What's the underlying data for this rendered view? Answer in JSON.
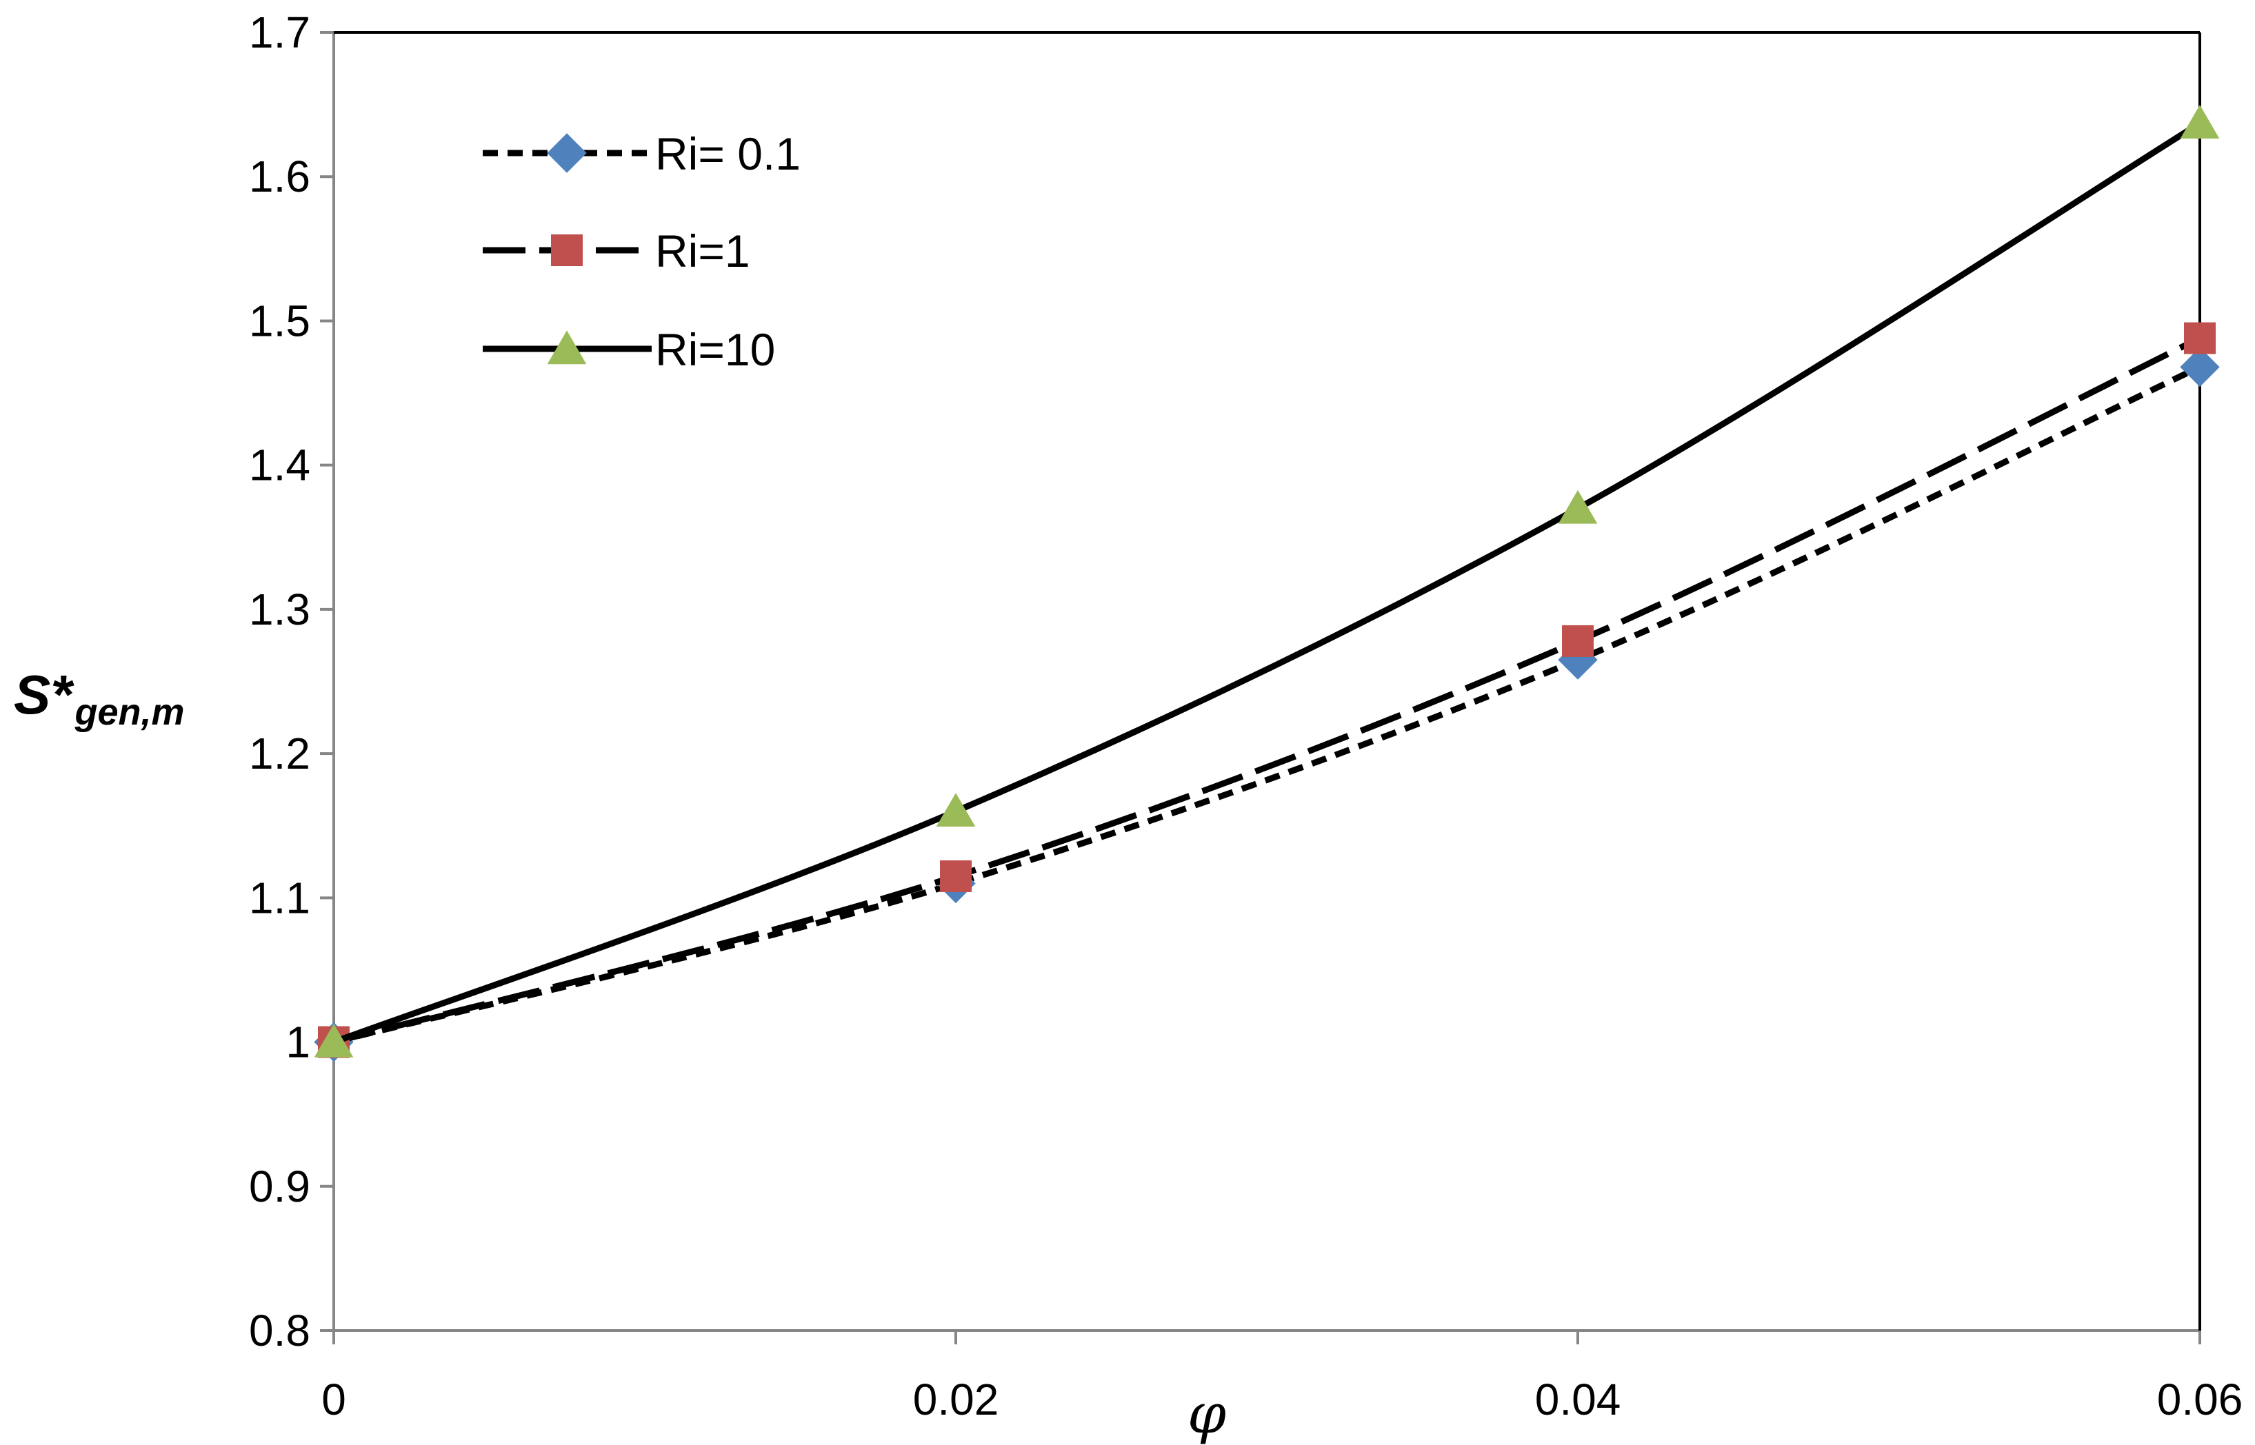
{
  "chart_data": {
    "type": "line",
    "title": "",
    "xlabel": "φ",
    "ylabel": {
      "main": "S*",
      "sub": "gen,m"
    },
    "x": [
      0,
      0.02,
      0.04,
      0.06
    ],
    "xlim": [
      0,
      0.06
    ],
    "ylim": [
      0.8,
      1.7
    ],
    "x_ticks": [
      "0",
      "0.02",
      "0.04",
      "0.06"
    ],
    "y_ticks": [
      "0.8",
      "0.9",
      "1",
      "1.1",
      "1.2",
      "1.3",
      "1.4",
      "1.5",
      "1.6",
      "1.7"
    ],
    "grid": false,
    "legend_position": "top-left",
    "series": [
      {
        "name": "Ri= 0.1",
        "values": [
          1.0,
          1.11,
          1.265,
          1.468
        ],
        "line_style": "short-dash",
        "marker": "diamond",
        "marker_color": "#4F81BD"
      },
      {
        "name": "Ri=1",
        "values": [
          1.0,
          1.115,
          1.278,
          1.488
        ],
        "line_style": "long-dash",
        "marker": "square",
        "marker_color": "#C0504D"
      },
      {
        "name": "Ri=10",
        "values": [
          1.0,
          1.16,
          1.37,
          1.637
        ],
        "line_style": "solid",
        "marker": "triangle",
        "marker_color": "#9BBB59"
      }
    ]
  }
}
